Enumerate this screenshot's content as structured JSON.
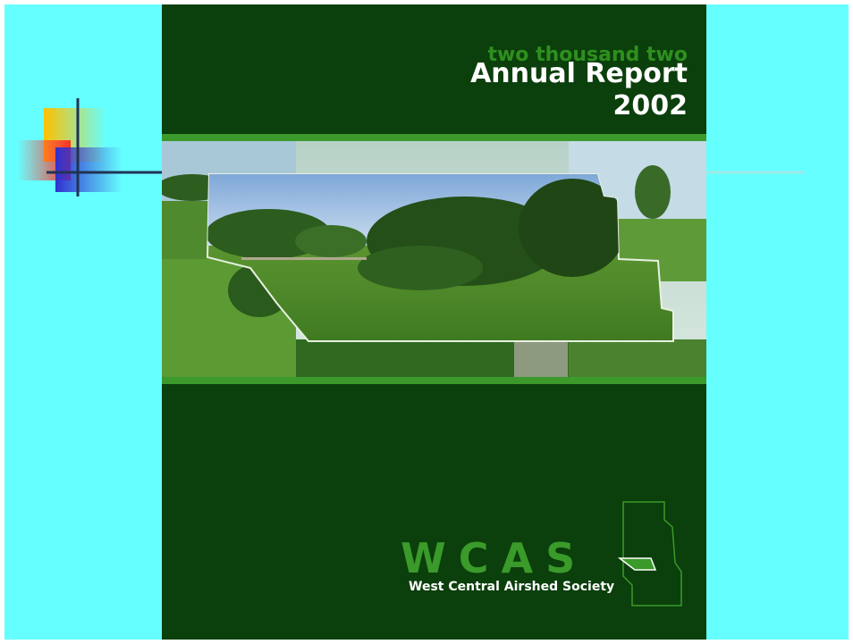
{
  "cover": {
    "subtitle": "two thousand two",
    "title": "Annual Report",
    "year": "2002",
    "logo": {
      "acronym": "WCAS",
      "name": "West Central Airshed Society"
    }
  }
}
